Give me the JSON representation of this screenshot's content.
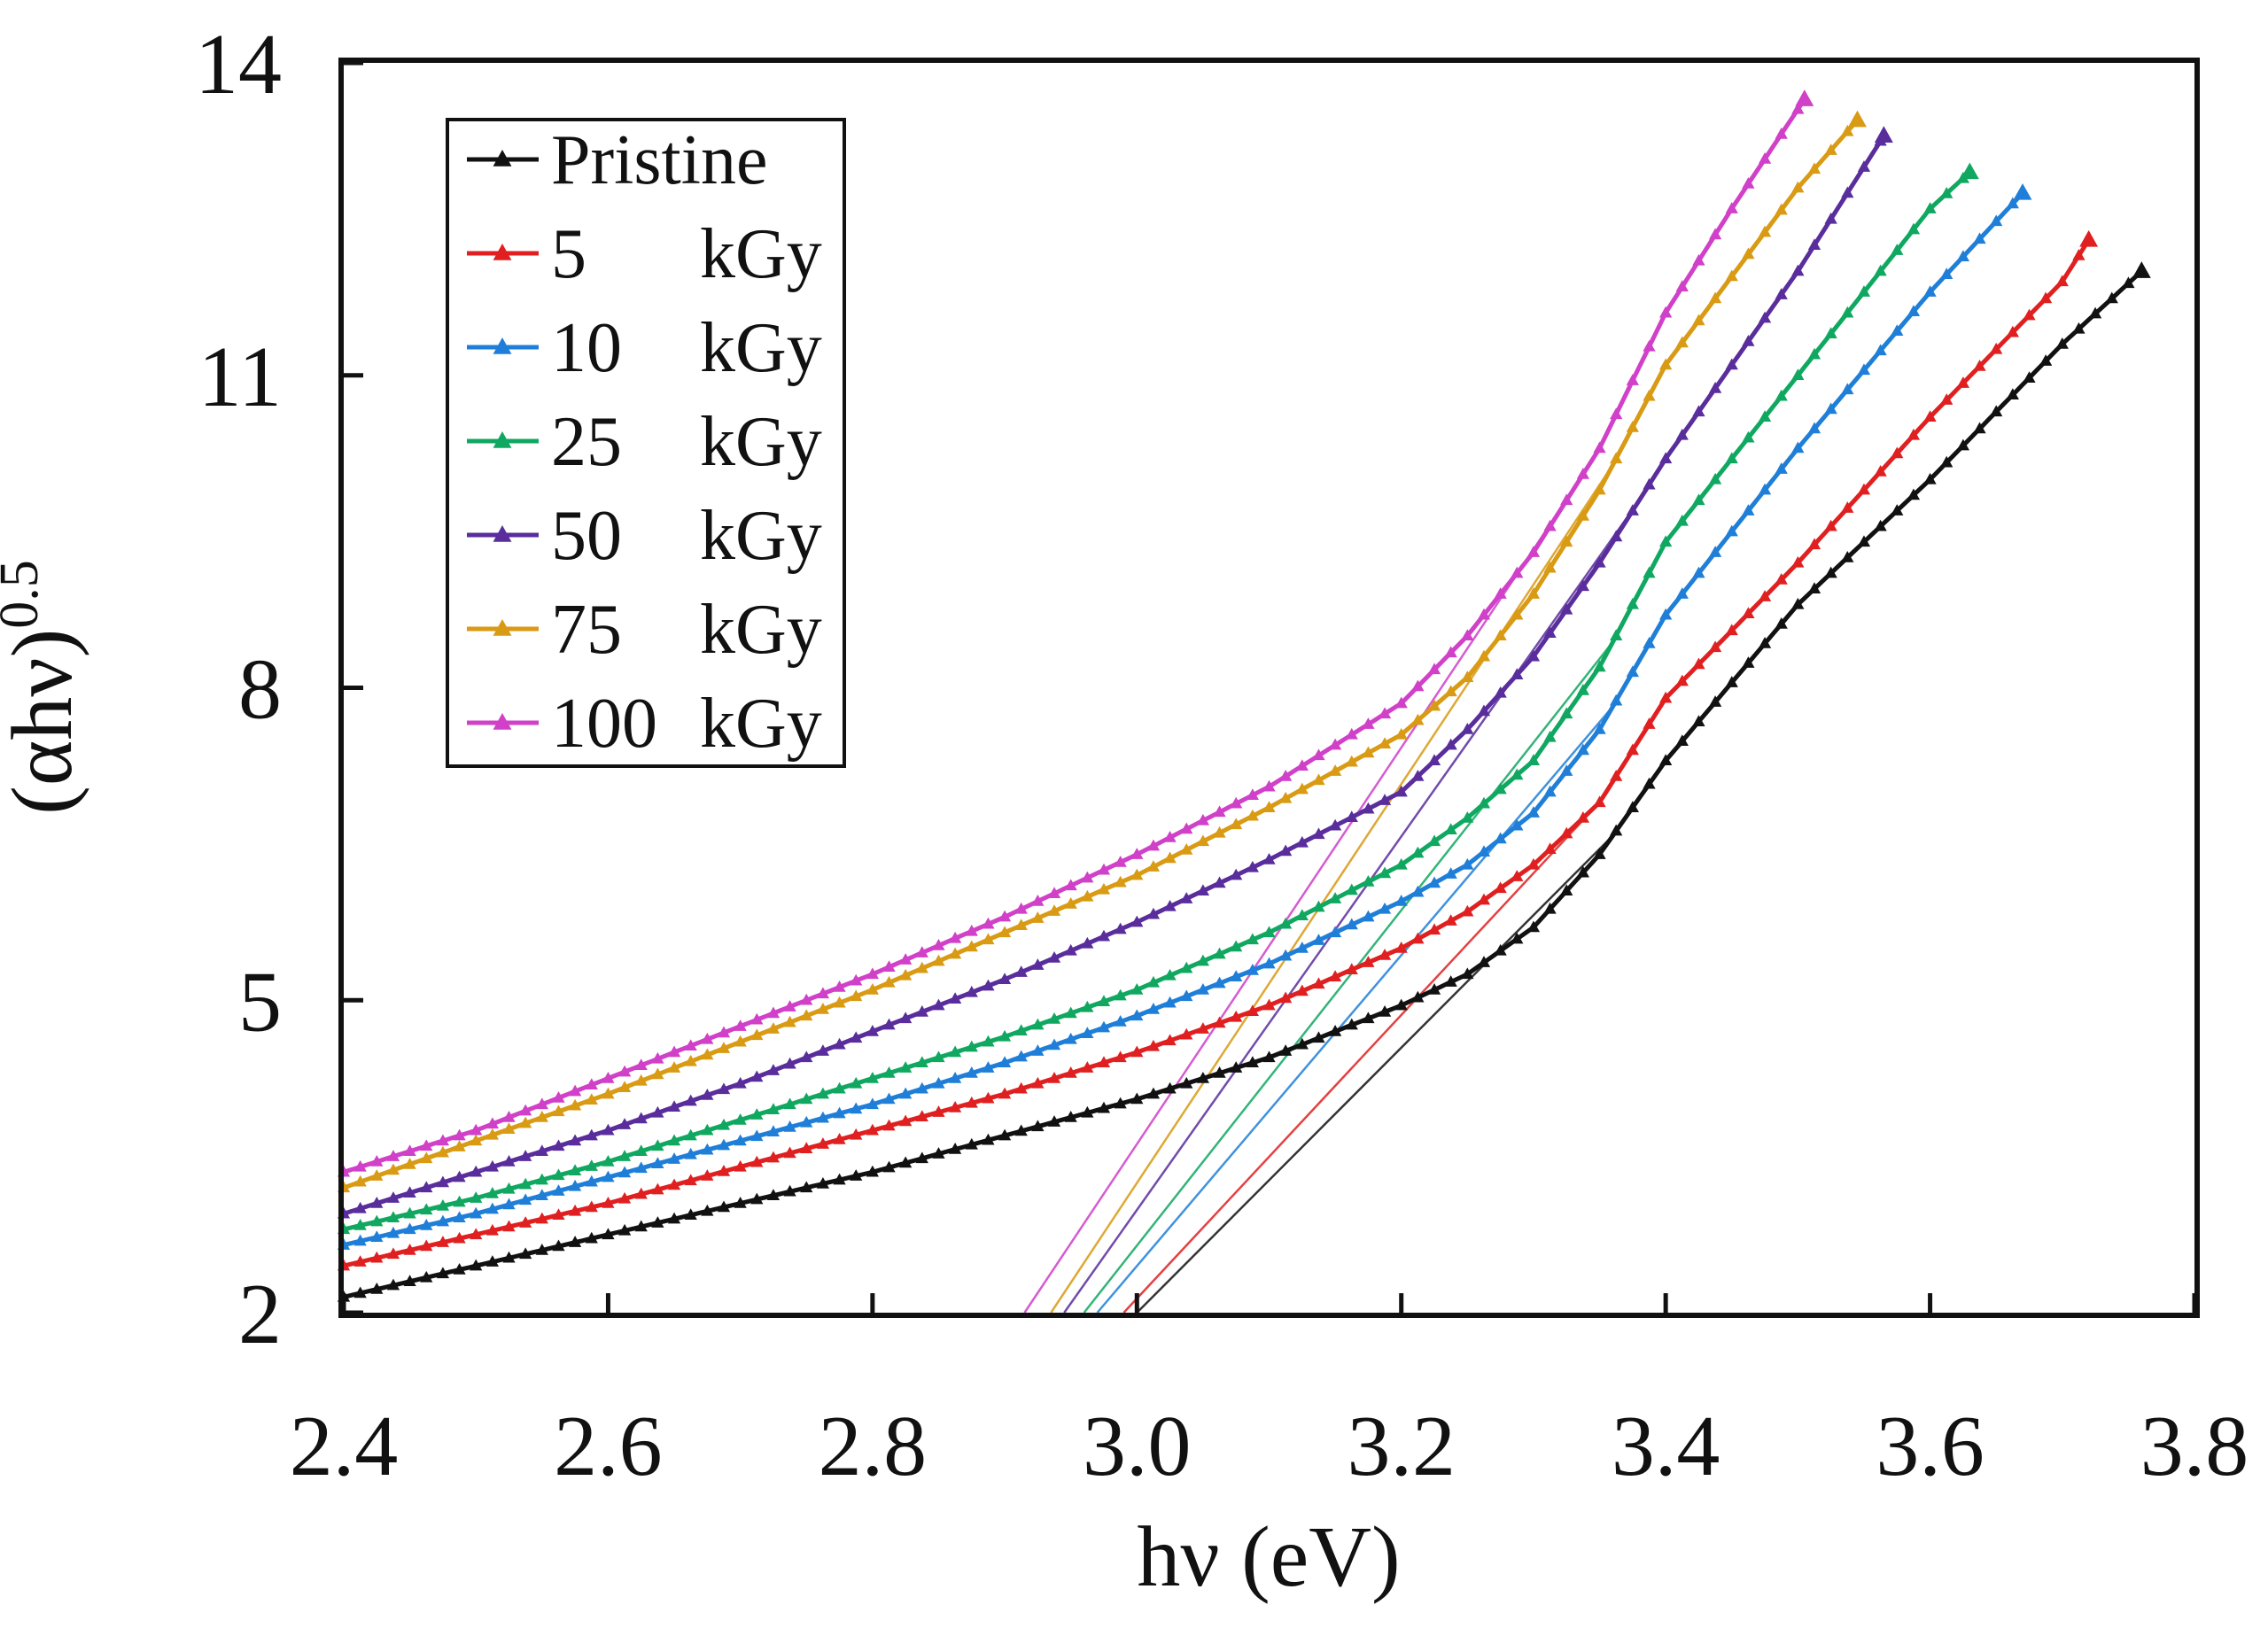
{
  "chart_data": {
    "type": "line",
    "title": "",
    "xlabel": "hν (eV)",
    "ylabel_main": "(αhν)",
    "ylabel_sup": "0.5",
    "xlim": [
      2.4,
      3.8
    ],
    "ylim": [
      2,
      14
    ],
    "xticks": [
      "2.4",
      "2.6",
      "2.8",
      "3.0",
      "3.2",
      "3.4",
      "3.6",
      "3.8"
    ],
    "yticks": [
      "2",
      "5",
      "8",
      "11",
      "14"
    ],
    "grid": false,
    "legend_position": "top-left",
    "legend": [
      {
        "label": "Pristine",
        "unit": ""
      },
      {
        "label": "5",
        "unit": "kGy"
      },
      {
        "label": "10",
        "unit": "kGy"
      },
      {
        "label": "25",
        "unit": "kGy"
      },
      {
        "label": "50",
        "unit": "kGy"
      },
      {
        "label": "75",
        "unit": "kGy"
      },
      {
        "label": "100",
        "unit": "kGy"
      }
    ],
    "series": [
      {
        "name": "Pristine",
        "color": "#111111",
        "x_end": 3.76,
        "x": [
          2.4,
          2.5,
          2.6,
          2.7,
          2.8,
          2.9,
          3.0,
          3.1,
          3.2,
          3.25,
          3.3,
          3.35,
          3.4,
          3.5,
          3.6,
          3.7,
          3.76
        ],
        "y": [
          2.15,
          2.45,
          2.75,
          3.05,
          3.35,
          3.7,
          4.05,
          4.45,
          4.95,
          5.25,
          5.7,
          6.4,
          7.3,
          8.8,
          10.0,
          11.3,
          12.0
        ],
        "tangent": {
          "x0": 3.0,
          "x1": 3.36
        }
      },
      {
        "name": "5 kGy",
        "color": "#e02020",
        "x_end": 3.72,
        "x": [
          2.4,
          2.5,
          2.6,
          2.7,
          2.8,
          2.9,
          3.0,
          3.1,
          3.2,
          3.25,
          3.3,
          3.35,
          3.4,
          3.5,
          3.6,
          3.7,
          3.72
        ],
        "y": [
          2.45,
          2.75,
          3.05,
          3.4,
          3.75,
          4.1,
          4.5,
          4.95,
          5.5,
          5.85,
          6.3,
          6.9,
          7.9,
          9.2,
          10.6,
          11.9,
          12.3
        ],
        "tangent": {
          "x0": 2.99,
          "x1": 3.35
        }
      },
      {
        "name": "10 kGy",
        "color": "#1f7fd8",
        "x_end": 3.67,
        "x": [
          2.4,
          2.5,
          2.6,
          2.7,
          2.8,
          2.9,
          3.0,
          3.1,
          3.2,
          3.25,
          3.3,
          3.35,
          3.4,
          3.5,
          3.6,
          3.67
        ],
        "y": [
          2.65,
          2.95,
          3.3,
          3.65,
          4.0,
          4.4,
          4.85,
          5.35,
          5.95,
          6.3,
          6.8,
          7.6,
          8.7,
          10.3,
          11.8,
          12.75
        ],
        "tangent": {
          "x0": 2.97,
          "x1": 3.36
        }
      },
      {
        "name": "25 kGy",
        "color": "#10a860",
        "x_end": 3.63,
        "x": [
          2.4,
          2.5,
          2.6,
          2.7,
          2.8,
          2.9,
          3.0,
          3.1,
          3.2,
          3.25,
          3.3,
          3.35,
          3.4,
          3.5,
          3.6,
          3.63
        ],
        "y": [
          2.8,
          3.1,
          3.45,
          3.85,
          4.25,
          4.65,
          5.1,
          5.65,
          6.3,
          6.75,
          7.3,
          8.2,
          9.4,
          11.0,
          12.6,
          12.95
        ],
        "tangent": {
          "x0": 2.96,
          "x1": 3.36
        }
      },
      {
        "name": "50 kGy",
        "color": "#5a2d9c",
        "x_end": 3.565,
        "x": [
          2.4,
          2.5,
          2.6,
          2.7,
          2.8,
          2.9,
          3.0,
          3.1,
          3.2,
          3.25,
          3.3,
          3.35,
          3.4,
          3.5,
          3.565
        ],
        "y": [
          2.95,
          3.35,
          3.75,
          4.2,
          4.7,
          5.2,
          5.75,
          6.35,
          7.0,
          7.6,
          8.3,
          9.2,
          10.2,
          12.0,
          13.3
        ],
        "tangent": {
          "x0": 2.945,
          "x1": 3.38
        }
      },
      {
        "name": "75 kGy",
        "color": "#d99a14",
        "x_end": 3.545,
        "x": [
          2.4,
          2.5,
          2.6,
          2.7,
          2.8,
          2.9,
          3.0,
          3.1,
          3.2,
          3.25,
          3.3,
          3.35,
          3.4,
          3.5,
          3.545
        ],
        "y": [
          3.2,
          3.65,
          4.1,
          4.6,
          5.1,
          5.65,
          6.2,
          6.85,
          7.55,
          8.1,
          8.9,
          9.9,
          11.1,
          12.8,
          13.45
        ],
        "tangent": {
          "x0": 2.935,
          "x1": 3.36
        }
      },
      {
        "name": "100 kGy",
        "color": "#d040c8",
        "x_end": 3.505,
        "x": [
          2.4,
          2.5,
          2.6,
          2.7,
          2.8,
          2.9,
          3.0,
          3.1,
          3.2,
          3.25,
          3.3,
          3.35,
          3.4,
          3.45,
          3.505
        ],
        "y": [
          3.35,
          3.75,
          4.25,
          4.75,
          5.25,
          5.8,
          6.4,
          7.05,
          7.85,
          8.5,
          9.3,
          10.3,
          11.6,
          12.6,
          13.65
        ],
        "tangent": {
          "x0": 2.915,
          "x1": 3.33
        }
      }
    ]
  }
}
